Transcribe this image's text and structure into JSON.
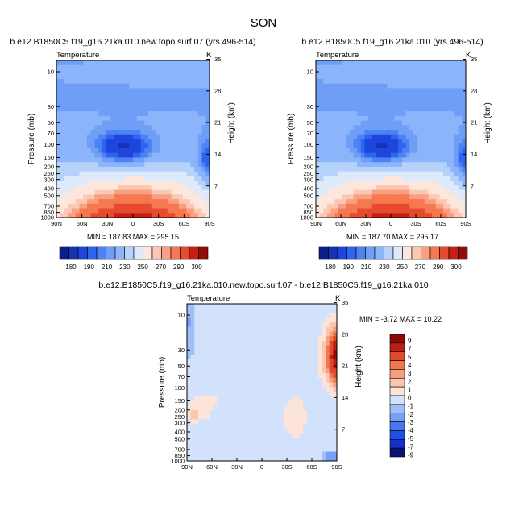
{
  "season": "SON",
  "colors": {
    "abs_palette": [
      "#0a1e8c",
      "#1432b4",
      "#1e46dc",
      "#2d64f0",
      "#4b82f5",
      "#6e9ef5",
      "#8cb4fa",
      "#b4d2fa",
      "#dceafc",
      "#fde6dc",
      "#fcc8b4",
      "#faa082",
      "#f57850",
      "#e64b2d",
      "#c81e14",
      "#960a0a"
    ],
    "diff_palette": [
      "#0a1478",
      "#1430c8",
      "#1e50e6",
      "#4678f0",
      "#78a0f5",
      "#a0bef8",
      "#d2e2fc",
      "#fde4d8",
      "#fac6b0",
      "#f5a07d",
      "#f07850",
      "#e04a2a",
      "#c01e12",
      "#8c0a0a"
    ]
  },
  "chart_data": [
    {
      "type": "contour",
      "title": "b.e12.B1850C5.f19_g16.21ka.010.new.topo.surf.07 (yrs 496-514)",
      "left_label": "Temperature",
      "right_label": "K",
      "ylabel": "Pressure (mb)",
      "ylabel_right": "Height (km)",
      "x_ticks": [
        "90N",
        "60N",
        "30N",
        "0",
        "30S",
        "60S",
        "90S"
      ],
      "y_ticks": [
        "10",
        "30",
        "50",
        "70",
        "100",
        "150",
        "200",
        "250",
        "300",
        "400",
        "500",
        "700",
        "850",
        "1000"
      ],
      "height_ticks": [
        "35",
        "28",
        "21",
        "14",
        "7"
      ],
      "stats": "MIN = 187.83  MAX = 295.15",
      "min": 187.83,
      "max": 295.15,
      "colorbar_labels": [
        "180",
        "190",
        "200",
        "210",
        "220",
        "230",
        "240",
        "250",
        "260",
        "270",
        "280",
        "290",
        "300"
      ],
      "colorbar_shown_labels": [
        "180",
        "190",
        "210",
        "230",
        "250",
        "270",
        "290",
        "300"
      ]
    },
    {
      "type": "contour",
      "title": "b.e12.B1850C5.f19_g16.21ka.010 (yrs 496-514)",
      "left_label": "Temperature",
      "right_label": "K",
      "ylabel": "Pressure (mb)",
      "ylabel_right": "Height (km)",
      "x_ticks": [
        "90N",
        "60N",
        "30N",
        "0",
        "30S",
        "60S",
        "90S"
      ],
      "y_ticks": [
        "10",
        "30",
        "50",
        "70",
        "100",
        "150",
        "200",
        "250",
        "300",
        "400",
        "500",
        "700",
        "850",
        "1000"
      ],
      "height_ticks": [
        "35",
        "28",
        "21",
        "14",
        "7"
      ],
      "stats": "MIN = 187.70  MAX = 295.17",
      "min": 187.7,
      "max": 295.17,
      "colorbar_labels": [
        "180",
        "190",
        "200",
        "210",
        "220",
        "230",
        "240",
        "250",
        "260",
        "270",
        "280",
        "290",
        "300"
      ],
      "colorbar_shown_labels": [
        "180",
        "190",
        "210",
        "230",
        "250",
        "270",
        "290",
        "300"
      ]
    },
    {
      "type": "contour",
      "title": "b.e12.B1850C5.f19_g16.21ka.010.new.topo.surf.07 - b.e12.B1850C5.f19_g16.21ka.010",
      "left_label": "Temperature",
      "right_label": "K",
      "ylabel": "Pressure (mb)",
      "ylabel_right": "Height (km)",
      "x_ticks": [
        "90N",
        "60N",
        "30N",
        "0",
        "30S",
        "60S",
        "90S"
      ],
      "y_ticks": [
        "10",
        "30",
        "50",
        "70",
        "100",
        "150",
        "200",
        "250",
        "300",
        "400",
        "500",
        "700",
        "850",
        "1000"
      ],
      "height_ticks": [
        "35",
        "28",
        "21",
        "14",
        "7"
      ],
      "stats": "MIN =  -3.72  MAX = 10.22",
      "min": -3.72,
      "max": 10.22,
      "colorbar_labels": [
        "9",
        "7",
        "5",
        "4",
        "3",
        "2",
        "1",
        "0",
        "-1",
        "-2",
        "-3",
        "-4",
        "-5",
        "-7",
        "-9"
      ]
    }
  ]
}
